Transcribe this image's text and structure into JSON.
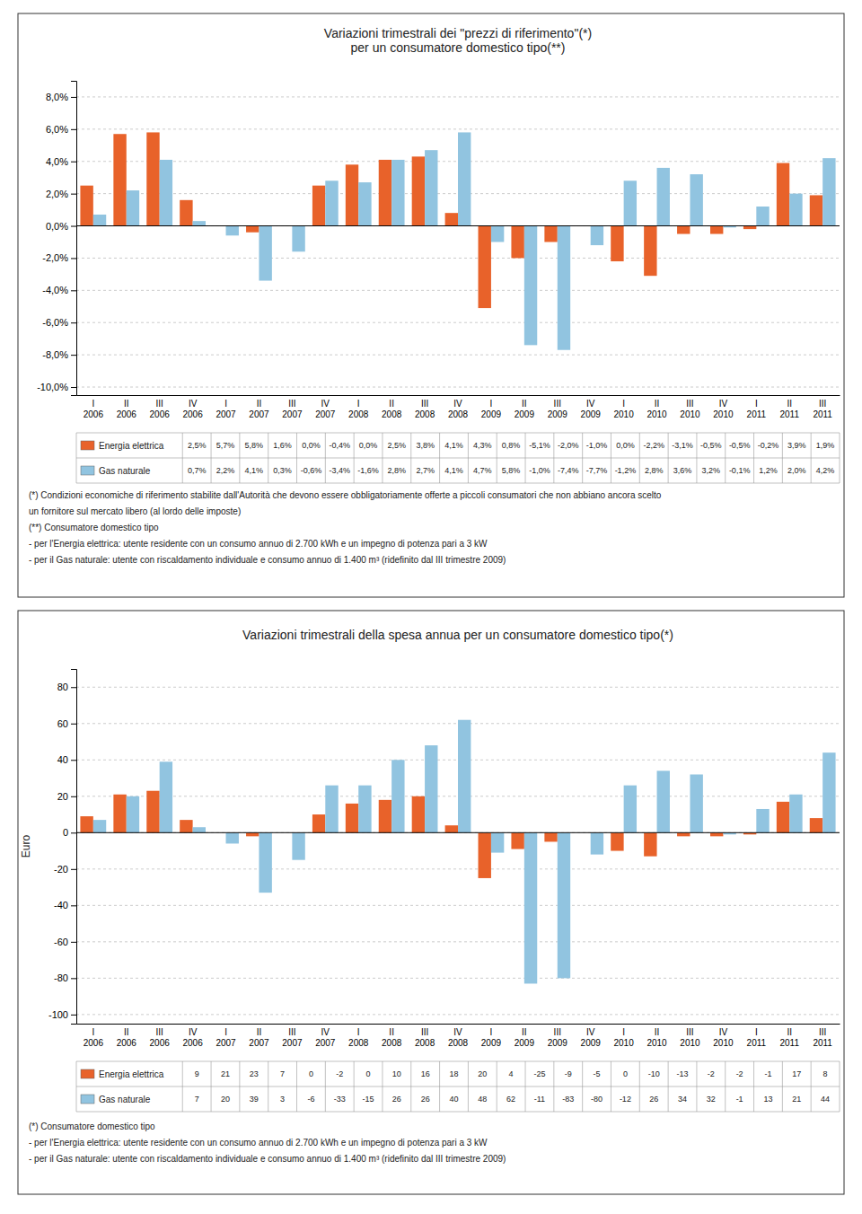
{
  "chart_data": [
    {
      "type": "bar",
      "title": "Variazioni trimestrali dei \"prezzi di riferimento\"(*)\nper un consumatore domestico tipo(**)",
      "categories": [
        "I\n2006",
        "II\n2006",
        "III\n2006",
        "IV\n2006",
        "I\n2007",
        "II\n2007",
        "III\n2007",
        "IV\n2007",
        "I\n2008",
        "II\n2008",
        "III\n2008",
        "IV\n2008",
        "I\n2009",
        "II\n2009",
        "III\n2009",
        "IV\n2009",
        "I\n2010",
        "II\n2010",
        "III\n2010",
        "IV\n2010",
        "I\n2011",
        "II\n2011",
        "III\n2011"
      ],
      "series": [
        {
          "name": "Energia elettrica",
          "color": "#E8622A",
          "values": [
            2.5,
            5.7,
            5.8,
            1.6,
            0.0,
            -0.4,
            0.0,
            2.5,
            3.8,
            4.1,
            4.3,
            0.8,
            -5.1,
            -2.0,
            -1.0,
            0.0,
            -2.2,
            -3.1,
            -0.5,
            -0.5,
            -0.2,
            3.9,
            1.9
          ],
          "value_labels": [
            "2,5%",
            "5,7%",
            "5,8%",
            "1,6%",
            "0,0%",
            "-0,4%",
            "0,0%",
            "2,5%",
            "3,8%",
            "4,1%",
            "4,3%",
            "0,8%",
            "-5,1%",
            "-2,0%",
            "-1,0%",
            "0,0%",
            "-2,2%",
            "-3,1%",
            "-0,5%",
            "-0,5%",
            "-0,2%",
            "3,9%",
            "1,9%"
          ]
        },
        {
          "name": "Gas naturale",
          "color": "#91C4E0",
          "values": [
            0.7,
            2.2,
            4.1,
            0.3,
            -0.6,
            -3.4,
            -1.6,
            2.8,
            2.7,
            4.1,
            4.7,
            5.8,
            -1.0,
            -7.4,
            -7.7,
            -1.2,
            2.8,
            3.6,
            3.2,
            -0.1,
            1.2,
            2.0,
            4.2
          ],
          "value_labels": [
            "0,7%",
            "2,2%",
            "4,1%",
            "0,3%",
            "-0,6%",
            "-3,4%",
            "-1,6%",
            "2,8%",
            "2,7%",
            "4,1%",
            "4,7%",
            "5,8%",
            "-1,0%",
            "-7,4%",
            "-7,7%",
            "-1,2%",
            "2,8%",
            "3,6%",
            "3,2%",
            "-0,1%",
            "1,2%",
            "2,0%",
            "4,2%"
          ]
        }
      ],
      "ylim": [
        -10.5,
        9.0
      ],
      "yticks": [
        {
          "value": -10.0,
          "label": "-10,0%"
        },
        {
          "value": -8.0,
          "label": "-8,0%"
        },
        {
          "value": -6.0,
          "label": "-6,0%"
        },
        {
          "value": -4.0,
          "label": "-4,0%"
        },
        {
          "value": -2.0,
          "label": "-2,0%"
        },
        {
          "value": 0.0,
          "label": "0,0%"
        },
        {
          "value": 2.0,
          "label": "2,0%"
        },
        {
          "value": 4.0,
          "label": "4,0%"
        },
        {
          "value": 6.0,
          "label": "6,0%"
        },
        {
          "value": 8.0,
          "label": "8,0%"
        }
      ],
      "grid": true,
      "annotations": [
        "(*) Condizioni economiche di riferimento stabilite dall'Autorità che devono essere obbligatoriamente offerte a piccoli consumatori che non abbiano ancora scelto",
        "un fornitore sul mercato libero (al lordo delle imposte)",
        "(**) Consumatore domestico tipo",
        "- per l'Energia elettrica: utente residente con un consumo annuo di 2.700 kWh e un impegno di potenza pari a 3 kW",
        "- per il Gas naturale: utente con riscaldamento individuale e consumo annuo di 1.400 m³ (ridefinito dal III trimestre 2009)"
      ]
    },
    {
      "type": "bar",
      "title": "Variazioni trimestrali della spesa annua per un consumatore domestico tipo(*)",
      "categories": [
        "I\n2006",
        "II\n2006",
        "III\n2006",
        "IV\n2006",
        "I\n2007",
        "II\n2007",
        "III\n2007",
        "IV\n2007",
        "I\n2008",
        "II\n2008",
        "III\n2008",
        "IV\n2008",
        "I\n2009",
        "II\n2009",
        "III\n2009",
        "IV\n2009",
        "I\n2010",
        "II\n2010",
        "III\n2010",
        "IV\n2010",
        "I\n2011",
        "II\n2011",
        "III\n2011"
      ],
      "series": [
        {
          "name": "Energia elettrica",
          "color": "#E8622A",
          "values": [
            9,
            21,
            23,
            7,
            0,
            -2,
            0,
            10,
            16,
            18,
            20,
            4,
            -25,
            -9,
            -5,
            0,
            -10,
            -13,
            -2,
            -2,
            -1,
            17,
            8
          ]
        },
        {
          "name": "Gas naturale",
          "color": "#91C4E0",
          "values": [
            7,
            20,
            39,
            3,
            -6,
            -33,
            -15,
            26,
            26,
            40,
            48,
            62,
            -11,
            -83,
            -80,
            -12,
            26,
            34,
            32,
            -1,
            13,
            21,
            44
          ]
        }
      ],
      "ylabel": "Euro",
      "ylim": [
        -105,
        90
      ],
      "yticks": [
        -100,
        -80,
        -60,
        -40,
        -20,
        0,
        20,
        40,
        60,
        80
      ],
      "grid": true,
      "annotations": [
        "(*) Consumatore domestico tipo",
        "- per l'Energia elettrica: utente residente con un consumo annuo di 2.700 kWh e un impegno di potenza pari a 3 kW",
        "- per il Gas naturale: utente con riscaldamento individuale e consumo annuo di 1.400 m³ (ridefinito dal III trimestre 2009)"
      ]
    }
  ]
}
